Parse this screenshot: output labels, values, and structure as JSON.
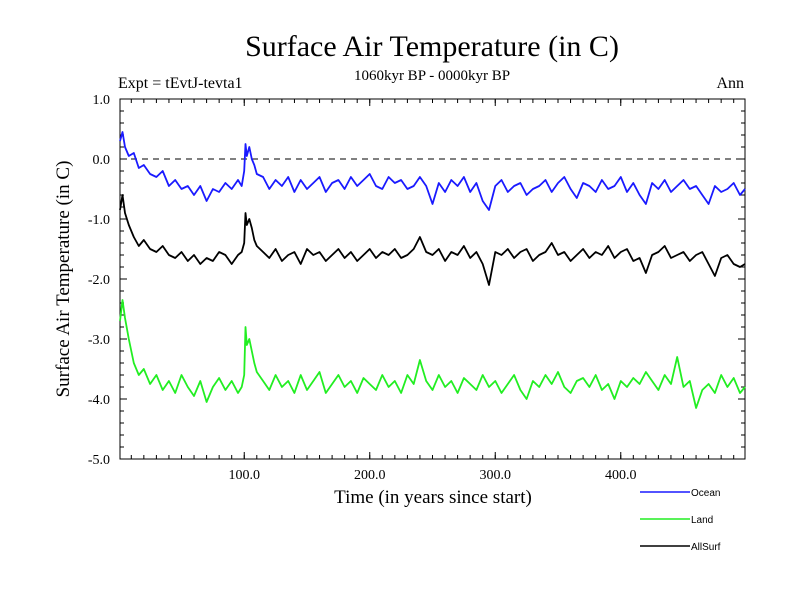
{
  "chart_data": {
    "type": "line",
    "title": "Surface Air Temperature (in C)",
    "subtitle": "1060kyr BP - 0000kyr BP",
    "experiment": "Expt = tEvtJ-tevta1",
    "period": "Ann",
    "xlabel": "Time (in years since start)",
    "ylabel": "Surface Air Temperature (in C)",
    "xlim": [
      1,
      499
    ],
    "ylim": [
      -5.0,
      1.0
    ],
    "xticks": [
      {
        "value": 100,
        "label": "100.0"
      },
      {
        "value": 200,
        "label": "200.0"
      },
      {
        "value": 300,
        "label": "300.0"
      },
      {
        "value": 400,
        "label": "400.0"
      }
    ],
    "yticks": [
      {
        "value": 1.0,
        "label": "1.0"
      },
      {
        "value": 0.0,
        "label": "0.0"
      },
      {
        "value": -1.0,
        "label": "-1.0"
      },
      {
        "value": -2.0,
        "label": "-2.0"
      },
      {
        "value": -3.0,
        "label": "-3.0"
      },
      {
        "value": -4.0,
        "label": "-4.0"
      },
      {
        "value": -5.0,
        "label": "-5.0"
      }
    ],
    "reference_line": {
      "y": 0.0,
      "style": "dashed"
    },
    "legend_position": "bottom-right",
    "series": [
      {
        "name": "Ocean",
        "color": "#1a1aff",
        "x": [
          1,
          3,
          5,
          8,
          12,
          16,
          20,
          25,
          30,
          35,
          40,
          45,
          50,
          55,
          60,
          65,
          70,
          75,
          80,
          85,
          90,
          95,
          98,
          100,
          101,
          102,
          104,
          106,
          108,
          110,
          115,
          120,
          125,
          130,
          135,
          140,
          145,
          150,
          155,
          160,
          165,
          170,
          175,
          180,
          185,
          190,
          195,
          200,
          205,
          210,
          215,
          220,
          225,
          230,
          235,
          240,
          245,
          250,
          255,
          260,
          265,
          270,
          275,
          280,
          285,
          290,
          295,
          300,
          305,
          310,
          315,
          320,
          325,
          330,
          335,
          340,
          345,
          350,
          355,
          360,
          365,
          370,
          375,
          380,
          385,
          390,
          395,
          400,
          405,
          410,
          415,
          420,
          425,
          430,
          435,
          440,
          445,
          450,
          455,
          460,
          465,
          470,
          475,
          480,
          485,
          490,
          495,
          499
        ],
        "values": [
          0.3,
          0.45,
          0.2,
          0.05,
          0.1,
          -0.15,
          -0.1,
          -0.25,
          -0.3,
          -0.2,
          -0.45,
          -0.35,
          -0.5,
          -0.45,
          -0.6,
          -0.45,
          -0.7,
          -0.5,
          -0.55,
          -0.4,
          -0.5,
          -0.35,
          -0.45,
          -0.2,
          0.25,
          0.05,
          0.2,
          0.0,
          -0.1,
          -0.25,
          -0.3,
          -0.5,
          -0.35,
          -0.45,
          -0.3,
          -0.55,
          -0.35,
          -0.5,
          -0.4,
          -0.3,
          -0.55,
          -0.4,
          -0.35,
          -0.5,
          -0.3,
          -0.45,
          -0.35,
          -0.25,
          -0.45,
          -0.5,
          -0.3,
          -0.4,
          -0.35,
          -0.5,
          -0.45,
          -0.3,
          -0.45,
          -0.75,
          -0.4,
          -0.55,
          -0.35,
          -0.45,
          -0.3,
          -0.55,
          -0.4,
          -0.7,
          -0.85,
          -0.45,
          -0.35,
          -0.55,
          -0.45,
          -0.4,
          -0.6,
          -0.5,
          -0.45,
          -0.35,
          -0.55,
          -0.4,
          -0.3,
          -0.5,
          -0.65,
          -0.4,
          -0.45,
          -0.55,
          -0.35,
          -0.5,
          -0.45,
          -0.3,
          -0.55,
          -0.4,
          -0.6,
          -0.75,
          -0.4,
          -0.5,
          -0.35,
          -0.55,
          -0.45,
          -0.35,
          -0.5,
          -0.45,
          -0.6,
          -0.75,
          -0.45,
          -0.55,
          -0.5,
          -0.4,
          -0.6,
          -0.5
        ]
      },
      {
        "name": "AllSurf",
        "color": "#000000",
        "x": [
          1,
          3,
          5,
          8,
          12,
          16,
          20,
          25,
          30,
          35,
          40,
          45,
          50,
          55,
          60,
          65,
          70,
          75,
          80,
          85,
          90,
          95,
          98,
          100,
          101,
          102,
          104,
          106,
          108,
          110,
          115,
          120,
          125,
          130,
          135,
          140,
          145,
          150,
          155,
          160,
          165,
          170,
          175,
          180,
          185,
          190,
          195,
          200,
          205,
          210,
          215,
          220,
          225,
          230,
          235,
          240,
          245,
          250,
          255,
          260,
          265,
          270,
          275,
          280,
          285,
          290,
          295,
          300,
          305,
          310,
          315,
          320,
          325,
          330,
          335,
          340,
          345,
          350,
          355,
          360,
          365,
          370,
          375,
          380,
          385,
          390,
          395,
          400,
          405,
          410,
          415,
          420,
          425,
          430,
          435,
          440,
          445,
          450,
          455,
          460,
          465,
          470,
          475,
          480,
          485,
          490,
          495,
          499
        ],
        "values": [
          -0.85,
          -0.6,
          -0.9,
          -1.1,
          -1.3,
          -1.45,
          -1.35,
          -1.5,
          -1.55,
          -1.45,
          -1.6,
          -1.65,
          -1.55,
          -1.7,
          -1.6,
          -1.75,
          -1.65,
          -1.7,
          -1.55,
          -1.6,
          -1.75,
          -1.6,
          -1.55,
          -1.4,
          -0.9,
          -1.1,
          -1.0,
          -1.15,
          -1.35,
          -1.45,
          -1.55,
          -1.65,
          -1.5,
          -1.7,
          -1.6,
          -1.55,
          -1.75,
          -1.5,
          -1.6,
          -1.55,
          -1.7,
          -1.6,
          -1.5,
          -1.65,
          -1.55,
          -1.7,
          -1.6,
          -1.5,
          -1.65,
          -1.55,
          -1.6,
          -1.5,
          -1.65,
          -1.6,
          -1.5,
          -1.3,
          -1.55,
          -1.6,
          -1.5,
          -1.7,
          -1.55,
          -1.6,
          -1.45,
          -1.65,
          -1.55,
          -1.75,
          -2.1,
          -1.55,
          -1.6,
          -1.5,
          -1.65,
          -1.55,
          -1.5,
          -1.7,
          -1.6,
          -1.55,
          -1.4,
          -1.6,
          -1.55,
          -1.7,
          -1.6,
          -1.5,
          -1.65,
          -1.55,
          -1.6,
          -1.45,
          -1.65,
          -1.55,
          -1.5,
          -1.7,
          -1.65,
          -1.9,
          -1.6,
          -1.55,
          -1.45,
          -1.65,
          -1.6,
          -1.55,
          -1.7,
          -1.6,
          -1.55,
          -1.75,
          -1.95,
          -1.65,
          -1.6,
          -1.75,
          -1.8,
          -1.75
        ]
      },
      {
        "name": "Land",
        "color": "#22ee22",
        "x": [
          1,
          3,
          5,
          8,
          12,
          16,
          20,
          25,
          30,
          35,
          40,
          45,
          50,
          55,
          60,
          65,
          70,
          75,
          80,
          85,
          90,
          95,
          98,
          100,
          101,
          102,
          104,
          106,
          108,
          110,
          115,
          120,
          125,
          130,
          135,
          140,
          145,
          150,
          155,
          160,
          165,
          170,
          175,
          180,
          185,
          190,
          195,
          200,
          205,
          210,
          215,
          220,
          225,
          230,
          235,
          240,
          245,
          250,
          255,
          260,
          265,
          270,
          275,
          280,
          285,
          290,
          295,
          300,
          305,
          310,
          315,
          320,
          325,
          330,
          335,
          340,
          345,
          350,
          355,
          360,
          365,
          370,
          375,
          380,
          385,
          390,
          395,
          400,
          405,
          410,
          415,
          420,
          425,
          430,
          435,
          440,
          445,
          450,
          455,
          460,
          465,
          470,
          475,
          480,
          485,
          490,
          495,
          499
        ],
        "values": [
          -2.7,
          -2.35,
          -2.65,
          -3.0,
          -3.4,
          -3.6,
          -3.5,
          -3.75,
          -3.6,
          -3.85,
          -3.7,
          -3.9,
          -3.6,
          -3.8,
          -3.95,
          -3.7,
          -4.05,
          -3.8,
          -3.65,
          -3.85,
          -3.7,
          -3.9,
          -3.8,
          -3.6,
          -2.8,
          -3.1,
          -3.0,
          -3.2,
          -3.4,
          -3.55,
          -3.7,
          -3.85,
          -3.6,
          -3.8,
          -3.7,
          -3.9,
          -3.6,
          -3.85,
          -3.7,
          -3.55,
          -3.9,
          -3.75,
          -3.6,
          -3.8,
          -3.7,
          -3.9,
          -3.65,
          -3.75,
          -3.85,
          -3.6,
          -3.8,
          -3.7,
          -3.9,
          -3.6,
          -3.75,
          -3.35,
          -3.7,
          -3.85,
          -3.6,
          -3.8,
          -3.7,
          -3.9,
          -3.65,
          -3.75,
          -3.85,
          -3.6,
          -3.8,
          -3.7,
          -3.9,
          -3.75,
          -3.6,
          -3.85,
          -4.0,
          -3.7,
          -3.8,
          -3.6,
          -3.75,
          -3.55,
          -3.8,
          -3.9,
          -3.7,
          -3.65,
          -3.8,
          -3.6,
          -3.85,
          -3.75,
          -4.0,
          -3.7,
          -3.8,
          -3.65,
          -3.75,
          -3.55,
          -3.7,
          -3.85,
          -3.6,
          -3.75,
          -3.3,
          -3.8,
          -3.7,
          -4.15,
          -3.85,
          -3.75,
          -3.9,
          -3.6,
          -3.8,
          -3.65,
          -3.9,
          -3.8
        ]
      }
    ]
  }
}
